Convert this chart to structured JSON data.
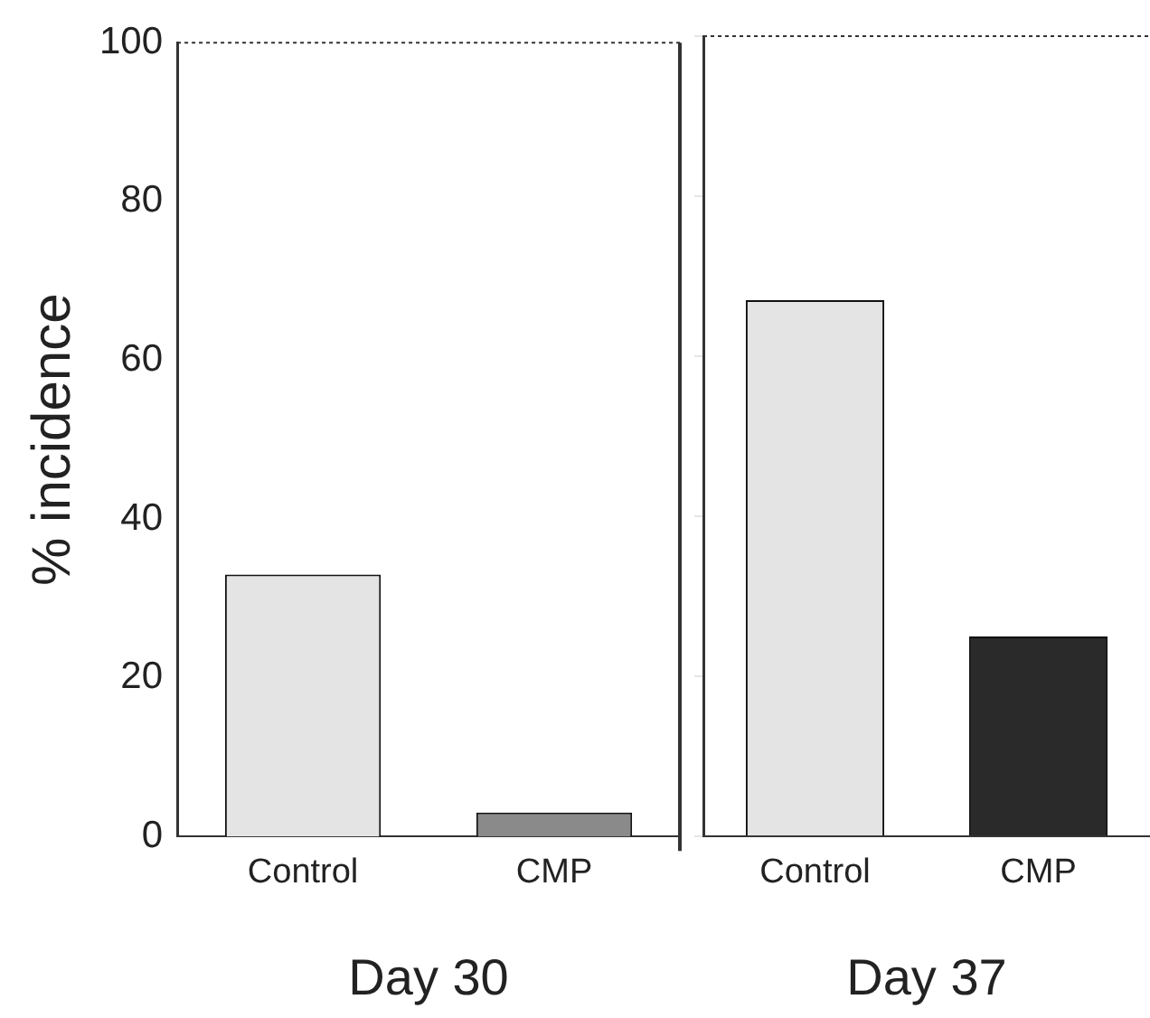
{
  "chart_data": [
    {
      "type": "bar",
      "xlabel": "Day 30",
      "ylabel": "% incidence",
      "categories": [
        "Control",
        "CMP"
      ],
      "values": [
        33,
        3
      ],
      "colors": [
        "#e4e4e4",
        "#8a8a8a"
      ],
      "ylim": [
        0,
        100
      ],
      "yticks": [
        0,
        20,
        40,
        60,
        80,
        100
      ],
      "grid": false,
      "legend": false
    },
    {
      "type": "bar",
      "xlabel": "Day 37",
      "categories": [
        "Control",
        "CMP"
      ],
      "values": [
        67,
        25
      ],
      "colors": [
        "#e4e4e4",
        "#2a2a2a"
      ],
      "ylim": [
        0,
        100
      ],
      "yticks": [
        0,
        20,
        40,
        60,
        80,
        100
      ],
      "grid": false,
      "legend": false,
      "tick_labels": "x"
    }
  ]
}
